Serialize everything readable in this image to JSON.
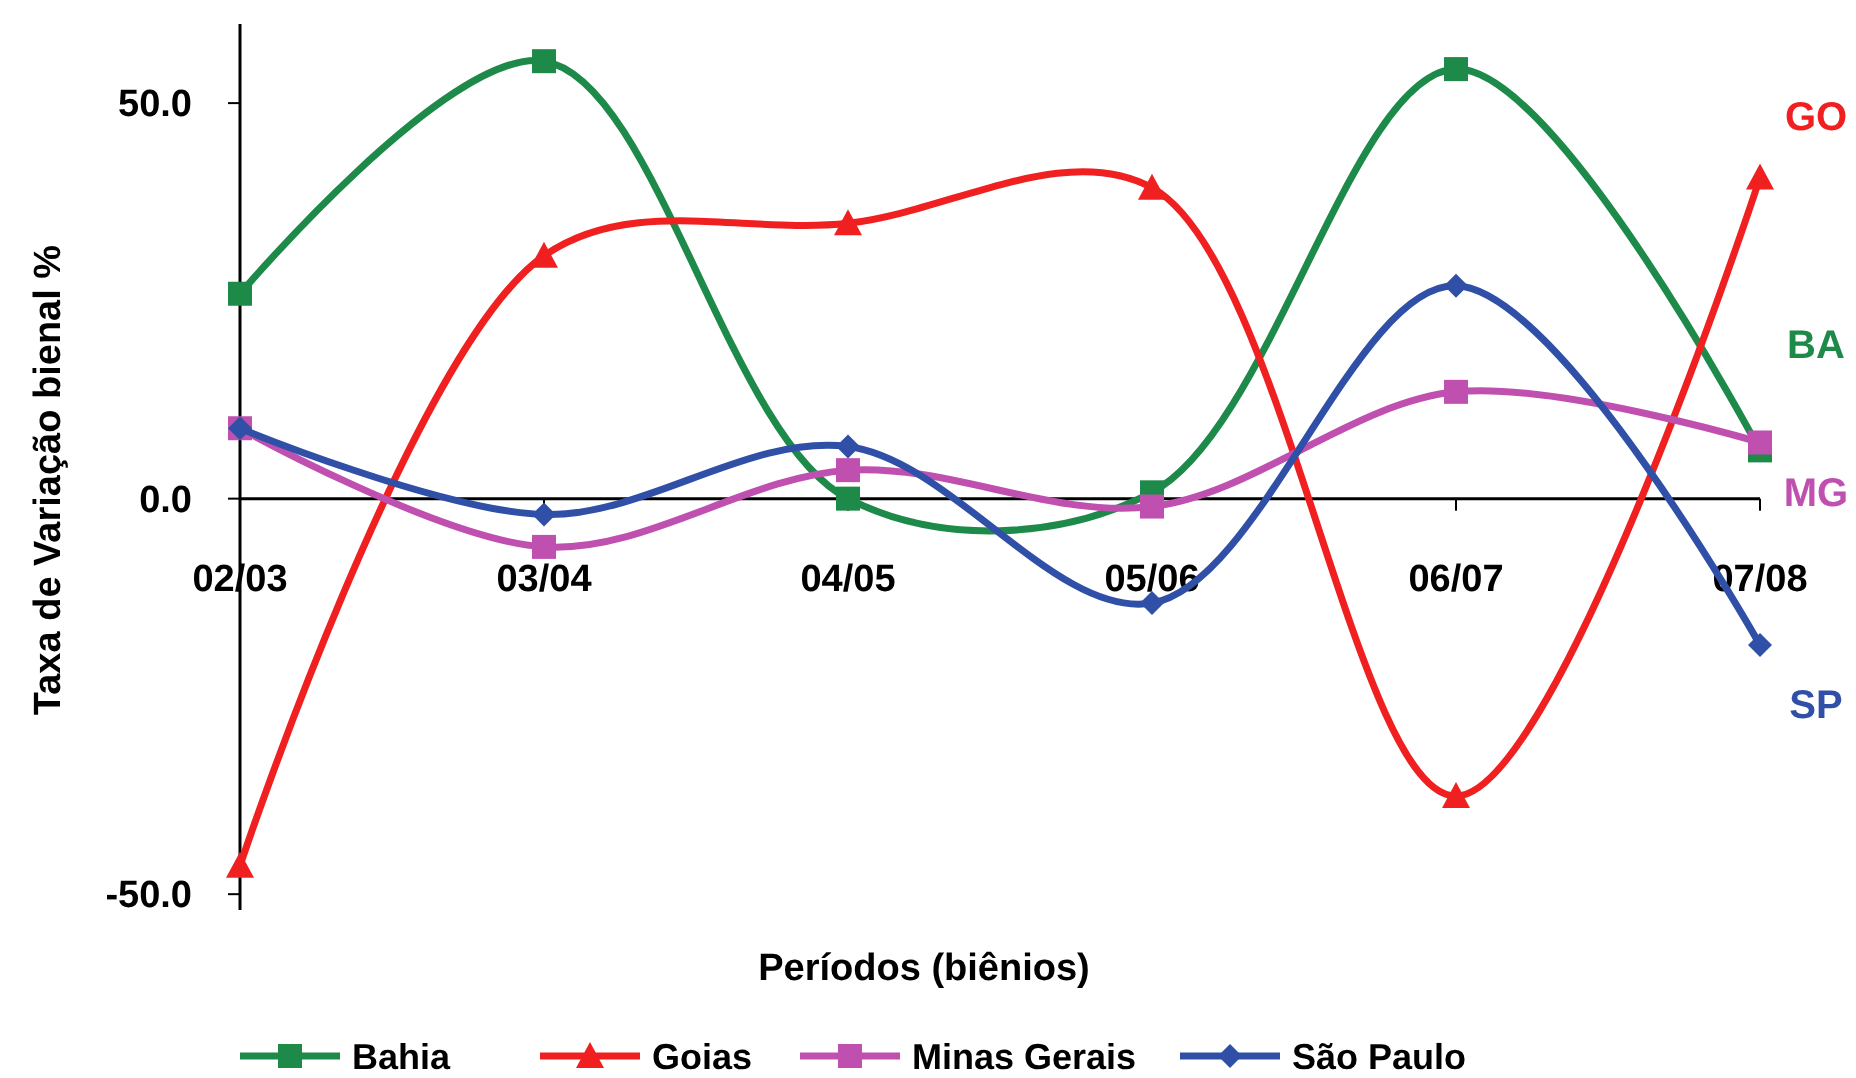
{
  "chart_data": {
    "type": "line",
    "xlabel": "Períodos (biênios)",
    "ylabel": "Taxa de Variação bienal %",
    "categories": [
      "02/03",
      "03/04",
      "04/05",
      "05/06",
      "06/07",
      "07/08"
    ],
    "ylim": [
      -52,
      60
    ],
    "yticks": [
      {
        "value": -50,
        "label": "-50.0"
      },
      {
        "value": 0,
        "label": "0.0"
      },
      {
        "value": 50,
        "label": "50.0"
      }
    ],
    "grid": false,
    "legend": "bottom",
    "line_style": "solid",
    "series": [
      {
        "name": "Bahia",
        "color": "#1e8a4a",
        "marker": "square",
        "values": [
          25.9,
          55.3,
          0,
          0.8,
          54.3,
          6.1
        ]
      },
      {
        "name": "Goias",
        "color": "#f02020",
        "marker": "triangle",
        "values": [
          -46.4,
          30.7,
          34.8,
          39.3,
          -37.6,
          40.6
        ]
      },
      {
        "name": "Minas Gerais",
        "color": "#c050b0",
        "marker": "square",
        "values": [
          8.9,
          -6.1,
          3.6,
          -1,
          13.5,
          7.1
        ]
      },
      {
        "name": "São Paulo",
        "color": "#3050a8",
        "marker": "diamond",
        "values": [
          8.9,
          -2,
          6.6,
          -13.2,
          26.9,
          -18.5
        ]
      }
    ],
    "annotations": [
      "GO",
      "BA",
      "MG",
      "SP"
    ]
  }
}
